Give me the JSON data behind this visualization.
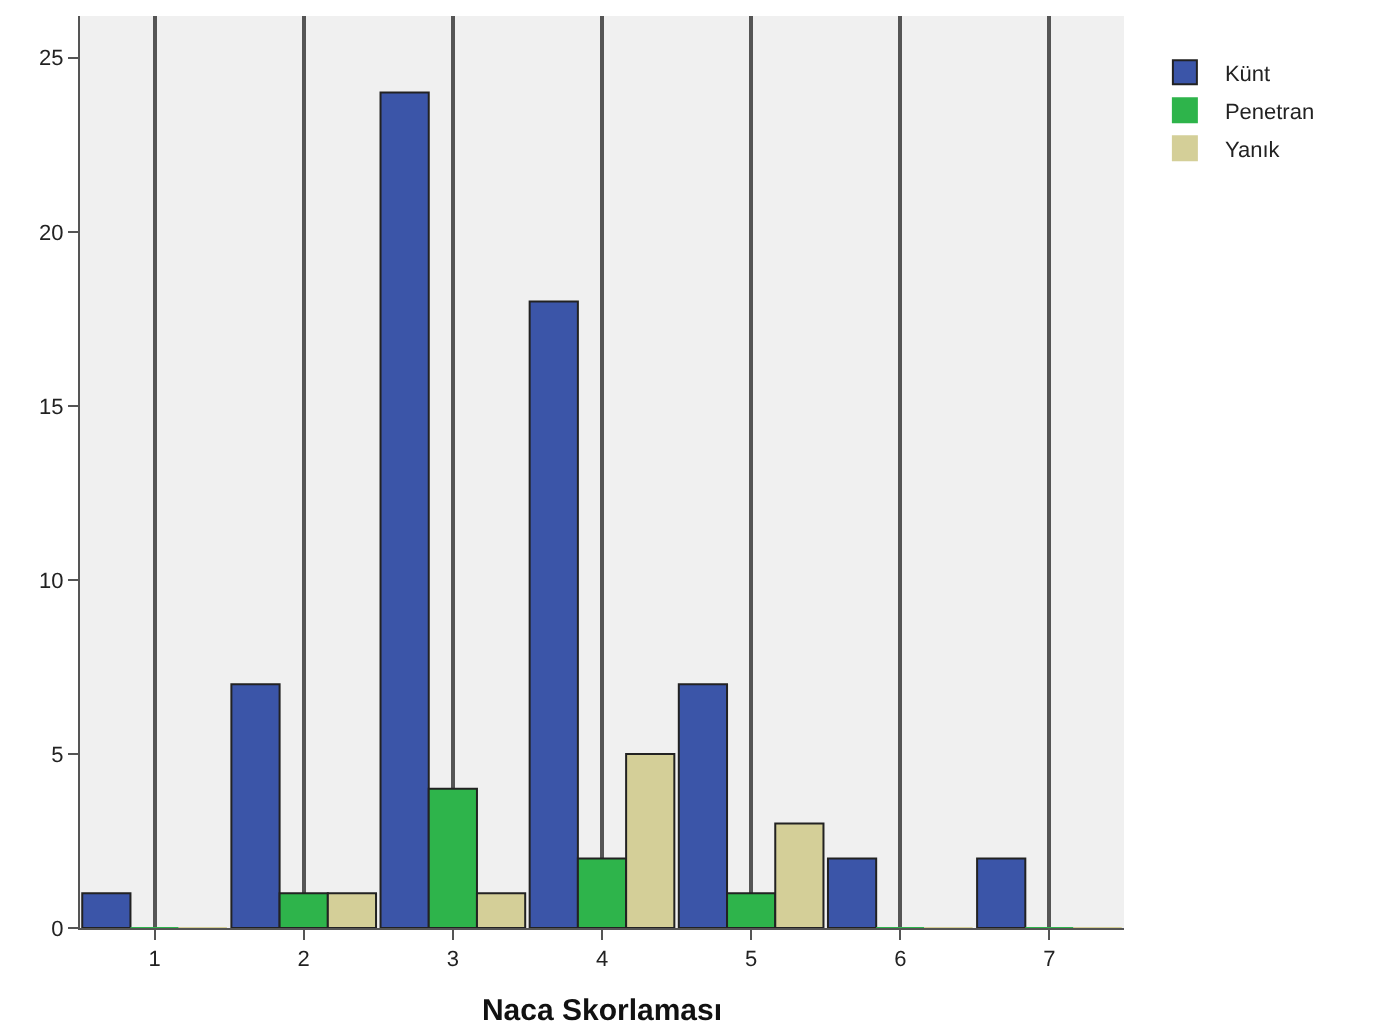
{
  "chart_data": {
    "type": "bar",
    "xlabel": "Naca Skorlaması",
    "categories": [
      "1",
      "2",
      "3",
      "4",
      "5",
      "6",
      "7"
    ],
    "series": [
      {
        "name": "Künt",
        "color": "#3b55a8",
        "values": [
          1,
          7,
          24,
          18,
          7,
          2,
          2
        ]
      },
      {
        "name": "Penetran",
        "color": "#2eb44b",
        "values": [
          0,
          1,
          4,
          2,
          1,
          0,
          0
        ]
      },
      {
        "name": "Yanık",
        "color": "#d4cf98",
        "values": [
          0,
          1,
          1,
          5,
          3,
          0,
          0
        ]
      }
    ],
    "ylim": [
      0,
      26.2
    ],
    "yticks": [
      0,
      5,
      10,
      15,
      20,
      25
    ],
    "grid": "x",
    "legend": "top right"
  }
}
